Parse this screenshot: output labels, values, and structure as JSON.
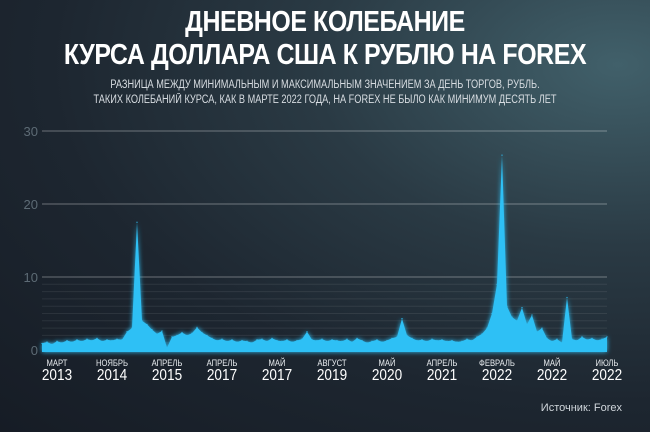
{
  "title_line1": "ДНЕВНОЕ КОЛЕБАНИЕ",
  "title_line2": "КУРСА ДОЛЛАРА США К РУБЛЮ НА FOREX",
  "subtitle_line1": "РАЗНИЦА МЕЖДУ МИНИМАЛЬНЫМ И МАКСИМАЛЬНЫМ ЗНАЧЕНИЕМ ЗА ДЕНЬ ТОРГОВ, РУБЛЬ.",
  "subtitle_line2": "ТАКИХ КОЛЕБАНИЙ КУРСА, КАК В МАРТЕ 2022 ГОДА, НА FOREX НЕ БЫЛО КАК МИНИМУМ ДЕСЯТЬ ЛЕТ",
  "source": "Источник: Forex",
  "chart_data": {
    "type": "area",
    "ylim": [
      0,
      30
    ],
    "yticks": [
      "0",
      "10",
      "20",
      "30"
    ],
    "grid": true,
    "color": "#2fc0f5",
    "xticks": [
      {
        "month": "МАРТ",
        "year": "2013"
      },
      {
        "month": "НОЯБРЬ",
        "year": "2014"
      },
      {
        "month": "АПРЕЛЬ",
        "year": "2015"
      },
      {
        "month": "АПРЕЛЬ",
        "year": "2017"
      },
      {
        "month": "МАЙ",
        "year": "2017"
      },
      {
        "month": "АВГУСТ",
        "year": "2019"
      },
      {
        "month": "МАЙ",
        "year": "2020"
      },
      {
        "month": "АПРЕЛЬ",
        "year": "2021"
      },
      {
        "month": "ФЕВРАЛЬ",
        "year": "2022"
      },
      {
        "month": "МАЙ",
        "year": "2022"
      },
      {
        "month": "ИЮЛЬ",
        "year": "2022"
      }
    ],
    "values": [
      0.9,
      1.1,
      0.8,
      1.2,
      1.0,
      1.3,
      1.1,
      1.4,
      1.2,
      1.5,
      1.3,
      1.6,
      1.2,
      1.4,
      1.3,
      1.5,
      1.4,
      2.5,
      3.0,
      17.5,
      4.0,
      3.5,
      2.8,
      2.2,
      2.6,
      0.3,
      1.8,
      2.0,
      2.4,
      2.0,
      2.3,
      3.1,
      2.4,
      2.0,
      1.6,
      1.3,
      1.5,
      1.2,
      1.4,
      1.1,
      1.3,
      1.2,
      1.0,
      1.4,
      1.5,
      1.2,
      1.6,
      1.3,
      1.2,
      1.4,
      1.1,
      1.3,
      1.5,
      2.5,
      1.4,
      1.3,
      1.5,
      1.2,
      1.4,
      1.3,
      1.2,
      1.5,
      1.1,
      1.6,
      1.3,
      1.0,
      1.2,
      1.4,
      1.1,
      1.3,
      1.6,
      1.8,
      4.3,
      2.0,
      1.6,
      1.3,
      1.4,
      1.2,
      1.5,
      1.3,
      1.4,
      1.2,
      1.3,
      1.1,
      1.2,
      1.5,
      1.3,
      1.8,
      2.2,
      3.0,
      5.0,
      9.0,
      26.7,
      6.0,
      4.5,
      4.0,
      5.8,
      3.5,
      4.8,
      2.5,
      3.0,
      1.6,
      1.2,
      1.5,
      1.0,
      7.2,
      1.5,
      1.3,
      1.8,
      1.4,
      1.6,
      1.3,
      1.5,
      1.8
    ]
  }
}
